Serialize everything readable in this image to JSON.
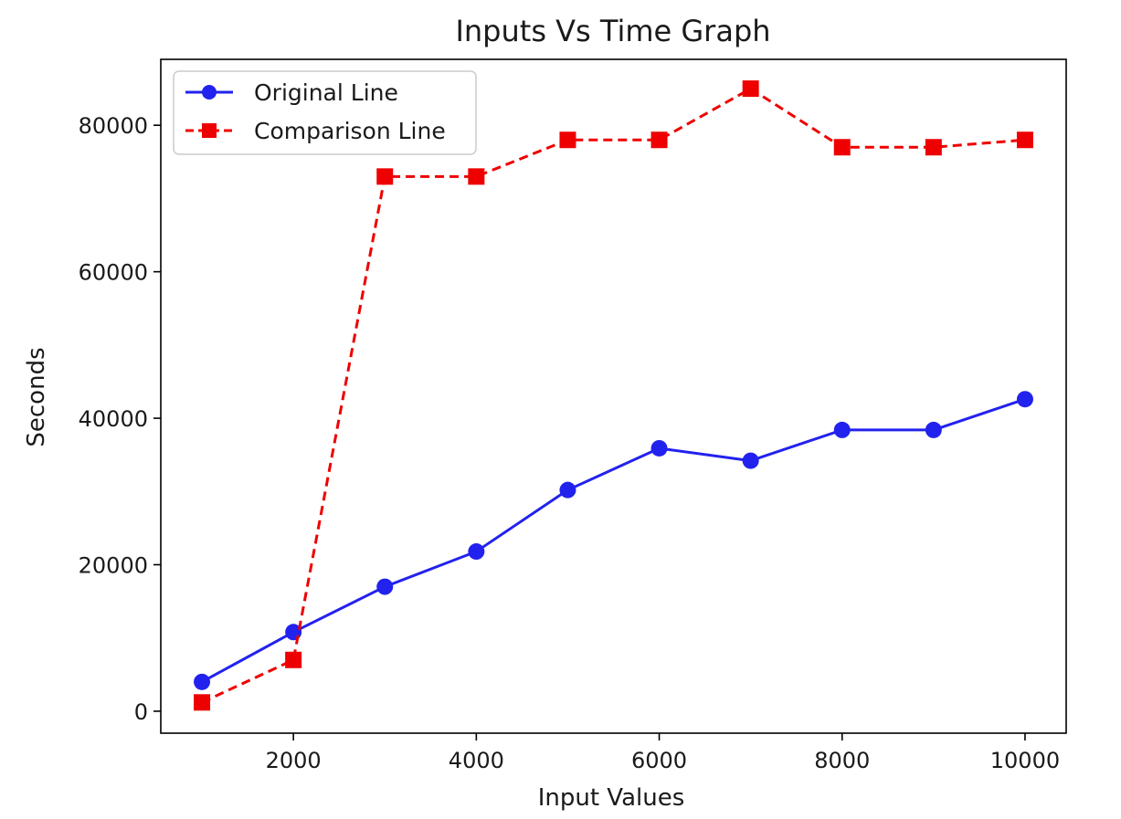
{
  "chart_data": {
    "type": "line",
    "title": "Inputs Vs Time Graph",
    "xlabel": "Input Values",
    "ylabel": "Seconds",
    "xlim": [
      550,
      10450
    ],
    "ylim": [
      -3000,
      89000
    ],
    "xticks": [
      2000,
      4000,
      6000,
      8000,
      10000
    ],
    "yticks": [
      0,
      20000,
      40000,
      60000,
      80000
    ],
    "grid": false,
    "legend_position": "top-left",
    "x": [
      1000,
      2000,
      3000,
      4000,
      5000,
      6000,
      7000,
      8000,
      9000,
      10000
    ],
    "series": [
      {
        "name": "Original Line",
        "color": "#2222ee",
        "line_style": "solid",
        "marker": "circle",
        "values": [
          4000,
          10800,
          17000,
          21800,
          30200,
          35900,
          34200,
          38400,
          38400,
          42600
        ]
      },
      {
        "name": "Comparison Line",
        "color": "#ee0000",
        "line_style": "dashed",
        "marker": "square",
        "values": [
          1200,
          7000,
          73000,
          73000,
          78000,
          78000,
          85000,
          77000,
          77000,
          78000
        ]
      }
    ]
  }
}
